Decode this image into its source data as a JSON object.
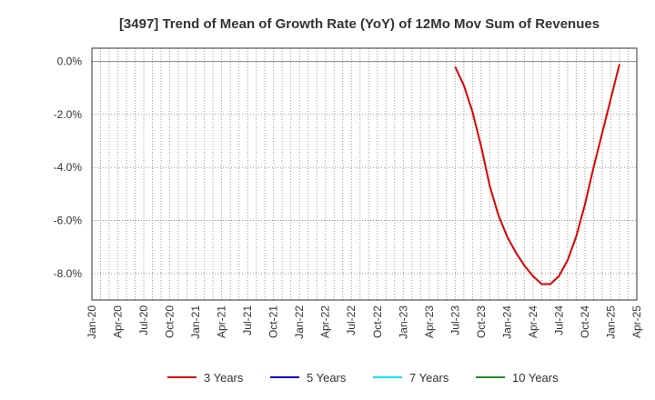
{
  "chart_data": {
    "type": "line",
    "title": "[3497]  Trend of Mean of Growth Rate (YoY) of 12Mo Mov Sum of Revenues",
    "xlabel": "",
    "ylabel": "",
    "x_tick_labels": [
      "Jan-20",
      "Apr-20",
      "Jul-20",
      "Oct-20",
      "Jan-21",
      "Apr-21",
      "Jul-21",
      "Oct-21",
      "Jan-22",
      "Apr-22",
      "Jul-22",
      "Oct-22",
      "Jan-23",
      "Apr-23",
      "Jul-23",
      "Oct-23",
      "Jan-24",
      "Apr-24",
      "Jul-24",
      "Oct-24",
      "Jan-25",
      "Apr-25"
    ],
    "y_ticks": [
      0,
      -2,
      -4,
      -6,
      -8
    ],
    "y_tick_labels": [
      "0.0%",
      "-2.0%",
      "-4.0%",
      "-6.0%",
      "-8.0%"
    ],
    "ylim": [
      -9.0,
      0.5
    ],
    "x_range_months": [
      0,
      63
    ],
    "grid": true,
    "legend_position": "bottom",
    "series": [
      {
        "name": "3 Years",
        "color": "#dd0000",
        "x_month_index": [
          42,
          43,
          44,
          45,
          46,
          47,
          48,
          49,
          50,
          51,
          52,
          53,
          54,
          55,
          56,
          57,
          58,
          59,
          60,
          61,
          62
        ],
        "values": [
          -0.2,
          -0.9,
          -1.9,
          -3.2,
          -4.7,
          -5.8,
          -6.6,
          -7.2,
          -7.7,
          -8.1,
          -8.4,
          -8.4,
          -8.1,
          -7.5,
          -6.6,
          -5.4,
          -4.0,
          -2.7,
          -1.4,
          -0.1,
          null
        ]
      },
      {
        "name": "5 Years",
        "color": "#0000cc",
        "x_month_index": [],
        "values": []
      },
      {
        "name": "7 Years",
        "color": "#00e5ee",
        "x_month_index": [],
        "values": []
      },
      {
        "name": "10 Years",
        "color": "#228b22",
        "x_month_index": [],
        "values": []
      }
    ]
  }
}
